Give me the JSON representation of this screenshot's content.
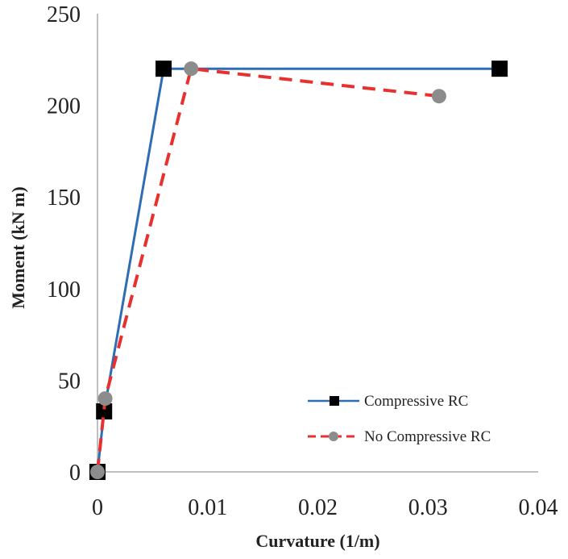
{
  "chart_data": {
    "type": "line",
    "title": "",
    "xlabel": "Curvature (1/m)",
    "ylabel": "Moment (kN m)",
    "xlim": [
      0,
      0.04
    ],
    "ylim": [
      0,
      250
    ],
    "x_ticks": [
      0,
      0.01,
      0.02,
      0.03,
      0.04
    ],
    "x_tick_labels": [
      "0",
      "0.01",
      "0.02",
      "0.03",
      "0.04"
    ],
    "y_ticks": [
      0,
      50,
      100,
      150,
      200,
      250
    ],
    "y_tick_labels": [
      "0",
      "50",
      "100",
      "150",
      "200",
      "250"
    ],
    "grid": false,
    "legend_position": "bottom-right",
    "series": [
      {
        "name": "Compressive RC",
        "color": "#2e6db4",
        "line_style": "solid",
        "marker": "square",
        "marker_color": "#000000",
        "x": [
          0,
          0.0006,
          0.006,
          0.0365
        ],
        "y": [
          0,
          33,
          220,
          220
        ]
      },
      {
        "name": "No Compressive RC",
        "color": "#e8312f",
        "line_style": "dashed",
        "marker": "circle",
        "marker_color": "#8c8c8c",
        "x": [
          0,
          0.0007,
          0.0085,
          0.031
        ],
        "y": [
          0,
          40,
          220,
          205
        ]
      }
    ]
  }
}
